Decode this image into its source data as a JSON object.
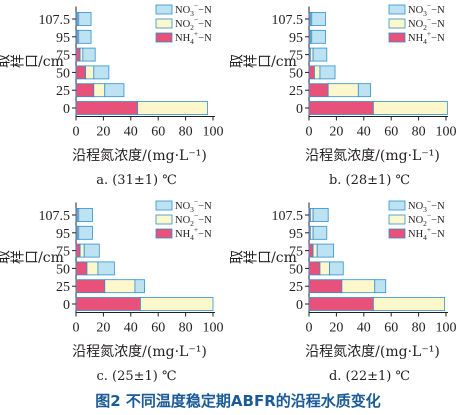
{
  "figure": {
    "caption": "图2   不同温度稳定期ABFR的沿程水质变化"
  },
  "colors": {
    "NO3": "#bde3f3",
    "NO2": "#fdf8cc",
    "NH4": "#e8527a",
    "stroke": "#2f8fcf",
    "axis": "#231f20"
  },
  "legend": [
    {
      "key": "NO3",
      "base": "NO",
      "sub": "3",
      "sup": "−",
      "suffix": "−N"
    },
    {
      "key": "NO2",
      "base": "NO",
      "sub": "2",
      "sup": "−",
      "suffix": "−N"
    },
    {
      "key": "NH4",
      "base": "NH",
      "sub": "4",
      "sup": "+",
      "suffix": "−N"
    }
  ],
  "chart_data": [
    {
      "type": "bar",
      "stacked": true,
      "orientation": "horizontal",
      "subtitle": "a. (31±1) ℃",
      "xlabel": "沿程氮浓度/(mg·L⁻¹)",
      "ylabel": "取样口/cm",
      "xlim": [
        0,
        100
      ],
      "xticks": [
        0,
        20,
        40,
        60,
        80,
        100
      ],
      "categories": [
        "0",
        "25",
        "50",
        "75",
        "95",
        "107.5"
      ],
      "series": [
        {
          "key": "NH4",
          "values": [
            45,
            13,
            7,
            3,
            1,
            1
          ]
        },
        {
          "key": "NO2",
          "values": [
            51,
            8,
            6,
            2,
            1,
            1
          ]
        },
        {
          "key": "NO3",
          "values": [
            0,
            14,
            11,
            9,
            9,
            9
          ]
        }
      ],
      "legend_position": "top-right"
    },
    {
      "type": "bar",
      "stacked": true,
      "orientation": "horizontal",
      "subtitle": "b. (28±1) ℃",
      "xlabel": "沿程氮浓度/(mg·L⁻¹)",
      "ylabel": "取样口/cm",
      "xlim": [
        0,
        100
      ],
      "xticks": [
        0,
        20,
        40,
        60,
        80,
        100
      ],
      "categories": [
        "0",
        "25",
        "50",
        "75",
        "95",
        "107.5"
      ],
      "series": [
        {
          "key": "NH4",
          "values": [
            47,
            14,
            4,
            1,
            1,
            1
          ]
        },
        {
          "key": "NO2",
          "values": [
            54,
            22,
            4,
            2,
            1,
            1
          ]
        },
        {
          "key": "NO3",
          "values": [
            0,
            9,
            11,
            10,
            10,
            10
          ]
        }
      ],
      "legend_position": "top-right"
    },
    {
      "type": "bar",
      "stacked": true,
      "orientation": "horizontal",
      "subtitle": "c. (25±1) ℃",
      "xlabel": "沿程氮浓度/(mg·L⁻¹)",
      "ylabel": "取样口/cm",
      "xlim": [
        0,
        100
      ],
      "xticks": [
        0,
        20,
        40,
        60,
        80,
        100
      ],
      "categories": [
        "0",
        "25",
        "50",
        "75",
        "95",
        "107.5"
      ],
      "series": [
        {
          "key": "NH4",
          "values": [
            47,
            21,
            8,
            3,
            1,
            1
          ]
        },
        {
          "key": "NO2",
          "values": [
            53,
            22,
            8,
            3,
            1,
            1
          ]
        },
        {
          "key": "NO3",
          "values": [
            0,
            7,
            12,
            11,
            10,
            10
          ]
        }
      ],
      "legend_position": "top-right"
    },
    {
      "type": "bar",
      "stacked": true,
      "orientation": "horizontal",
      "subtitle": "d. (22±1) ℃",
      "xlabel": "沿程氮浓度/(mg·L⁻¹)",
      "ylabel": "取样口/cm",
      "xlim": [
        0,
        100
      ],
      "xticks": [
        0,
        20,
        40,
        60,
        80,
        100
      ],
      "categories": [
        "0",
        "25",
        "50",
        "75",
        "95",
        "107.5"
      ],
      "series": [
        {
          "key": "NH4",
          "values": [
            47,
            24,
            8,
            3,
            1,
            1
          ]
        },
        {
          "key": "NO2",
          "values": [
            52,
            24,
            7,
            3,
            2,
            2
          ]
        },
        {
          "key": "NO3",
          "values": [
            0,
            8,
            10,
            12,
            10,
            11
          ]
        }
      ],
      "legend_position": "top-right"
    }
  ]
}
